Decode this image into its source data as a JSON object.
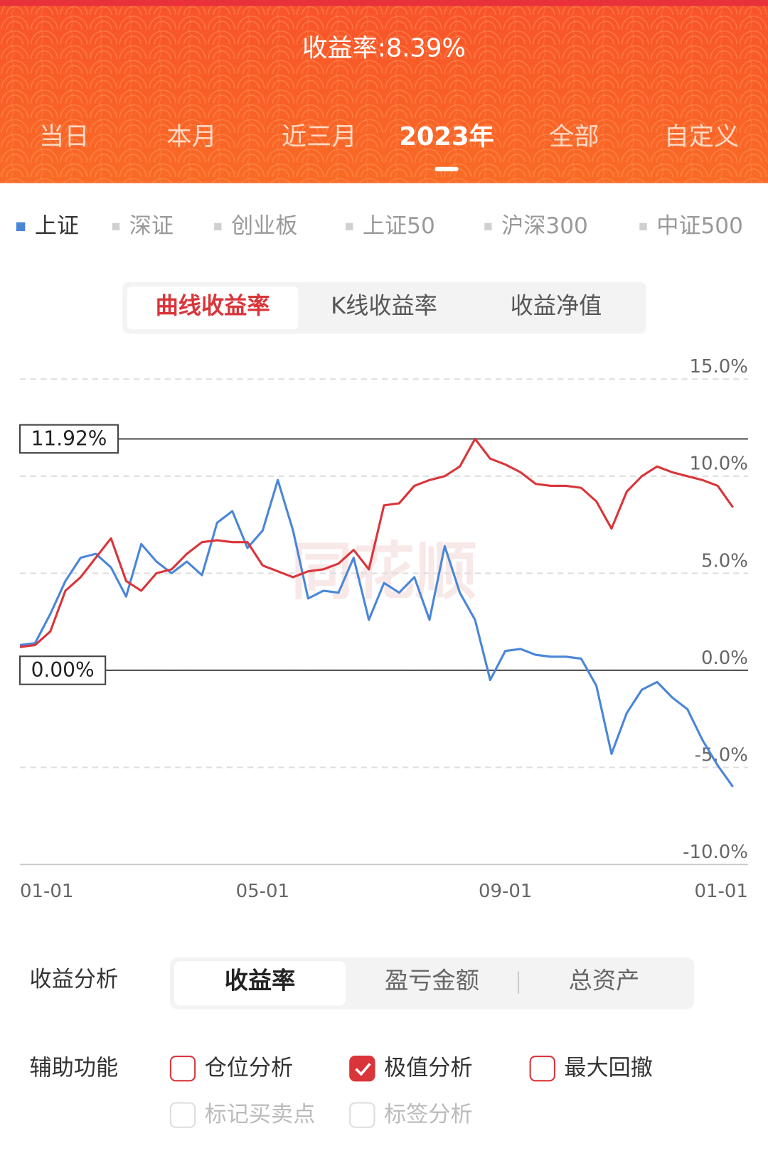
{
  "header": {
    "title": "收益率:8.39%",
    "tabs": [
      "当日",
      "本月",
      "近三月",
      "2023年",
      "全部",
      "自定义"
    ],
    "selected": 3
  },
  "index_legend": {
    "items": [
      "深证",
      "创业板",
      "上证50",
      "沪深300",
      "中证500"
    ]
  },
  "chart_modes": {
    "items": [
      "曲线收益率",
      "K线收益率",
      "收益净值"
    ],
    "selected": 0
  },
  "chart_data": {
    "type": "line",
    "watermark": "同花顺",
    "x": [
      "01-01",
      null,
      null,
      null,
      null,
      null,
      null,
      null,
      null,
      null,
      null,
      null,
      null,
      null,
      null,
      null,
      "05-01",
      null,
      null,
      null,
      null,
      null,
      null,
      null,
      null,
      null,
      null,
      null,
      null,
      null,
      null,
      null,
      "09-01",
      null,
      null,
      null,
      null,
      null,
      null,
      null,
      null,
      null,
      null,
      null,
      null,
      null,
      null,
      null,
      "01-01"
    ],
    "series": [
      {
        "color": "#d9353a",
        "values": [
          1.2,
          1.3,
          2.0,
          4.1,
          4.8,
          5.8,
          6.8,
          4.6,
          4.1,
          5.0,
          5.2,
          6.0,
          6.6,
          6.7,
          6.6,
          6.6,
          5.4,
          5.1,
          4.8,
          5.1,
          5.2,
          5.5,
          6.2,
          5.2,
          8.5,
          8.6,
          9.5,
          9.8,
          10.0,
          10.5,
          11.92,
          10.9,
          10.6,
          10.2,
          9.6,
          9.5,
          9.5,
          9.4,
          8.7,
          7.3,
          9.2,
          10.0,
          10.5,
          10.2,
          10.0,
          9.8,
          9.5,
          8.39,
          null
        ]
      },
      {
        "name": "上证",
        "color": "#4a86d8",
        "values": [
          1.3,
          1.4,
          2.9,
          4.6,
          5.8,
          6.0,
          5.3,
          3.8,
          6.5,
          5.6,
          5.0,
          5.6,
          4.9,
          7.6,
          8.2,
          6.3,
          7.2,
          9.8,
          7.2,
          3.7,
          4.1,
          4.0,
          5.8,
          2.6,
          4.5,
          4.0,
          4.8,
          2.6,
          6.4,
          4.0,
          2.6,
          -0.5,
          1.0,
          1.1,
          0.8,
          0.7,
          0.7,
          0.6,
          -0.8,
          -4.3,
          -2.2,
          -1.0,
          -0.6,
          -1.4,
          -2.0,
          -3.6,
          -4.9,
          -6.0,
          null
        ]
      }
    ],
    "ylim": [
      -10,
      15
    ],
    "yticks": [
      {
        "value": -10,
        "label": "-10.0%"
      },
      {
        "value": -5,
        "label": "-5.0%"
      },
      {
        "value": 0,
        "label": "0.0%"
      },
      {
        "value": 5,
        "label": "5.0%"
      },
      {
        "value": 10,
        "label": "10.0%"
      },
      {
        "value": 15,
        "label": "15.0%"
      }
    ],
    "grid": true,
    "annotations": [
      {
        "label": "11.92%",
        "value": 11.92
      },
      {
        "label": "0.00%",
        "value": 0
      }
    ]
  },
  "analysis": {
    "label": "收益分析",
    "tabs": [
      "收益率",
      "盈亏金额",
      "总资产"
    ],
    "selected": 0
  },
  "aux": {
    "label": "辅助功能",
    "options": [
      {
        "label": "仓位分析",
        "checked": false,
        "enabled": true
      },
      {
        "label": "极值分析",
        "checked": true,
        "enabled": true
      },
      {
        "label": "最大回撤",
        "checked": false,
        "enabled": true
      },
      {
        "label": "标记买卖点",
        "checked": false,
        "enabled": false
      },
      {
        "label": "标签分析",
        "checked": false,
        "enabled": false
      }
    ]
  }
}
